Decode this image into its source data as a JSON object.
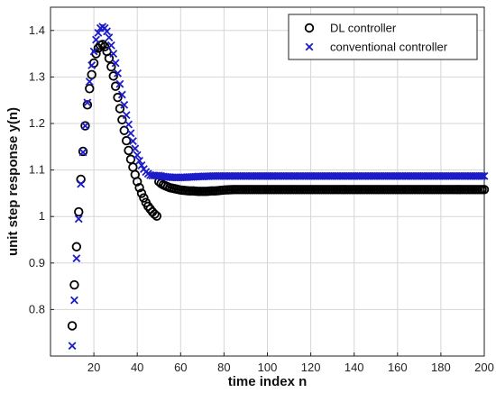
{
  "chart_data": {
    "type": "scatter",
    "xlabel": "time index n",
    "ylabel": "unit step response y(n)",
    "xlim": [
      0,
      200
    ],
    "ylim": [
      0.7,
      1.45
    ],
    "xticks": [
      20,
      40,
      60,
      80,
      100,
      120,
      140,
      160,
      180,
      200
    ],
    "yticks": [
      0.8,
      0.9,
      1,
      1.1,
      1.2,
      1.3,
      1.4
    ],
    "grid": true,
    "legend_position": "top-right",
    "series": [
      {
        "name": "DL controller",
        "marker": "circle",
        "color": "#000000",
        "x": [
          10,
          11,
          12,
          13,
          14,
          15,
          16,
          17,
          18,
          19,
          20,
          21,
          22,
          23,
          24,
          25,
          26,
          27,
          28,
          29,
          30,
          31,
          32,
          33,
          34,
          35,
          36,
          37,
          38,
          39,
          40,
          41,
          42,
          43,
          44,
          45,
          46,
          47,
          48,
          49,
          50,
          51,
          52,
          53,
          54,
          55,
          56,
          57,
          58,
          59,
          60,
          62,
          64,
          66,
          68,
          70,
          72,
          74,
          76,
          78,
          80,
          85,
          90,
          95,
          100,
          110,
          120,
          130,
          140,
          150,
          160,
          170,
          180,
          190,
          200
        ],
        "y": [
          0.765,
          0.853,
          0.935,
          1.01,
          1.08,
          1.14,
          1.195,
          1.24,
          1.275,
          1.305,
          1.33,
          1.35,
          1.362,
          1.368,
          1.37,
          1.365,
          1.355,
          1.34,
          1.322,
          1.302,
          1.28,
          1.256,
          1.232,
          1.208,
          1.185,
          1.163,
          1.142,
          1.123,
          1.106,
          1.09,
          1.075,
          1.062,
          1.05,
          1.04,
          1.03,
          1.022,
          1.016,
          1.01,
          1.005,
          1.001,
          1.075,
          1.071,
          1.068,
          1.066,
          1.064,
          1.062,
          1.061,
          1.06,
          1.059,
          1.058,
          1.057,
          1.056,
          1.055,
          1.055,
          1.054,
          1.054,
          1.054,
          1.055,
          1.055,
          1.056,
          1.057,
          1.058,
          1.058,
          1.058,
          1.058,
          1.058,
          1.058,
          1.058,
          1.058,
          1.058,
          1.058,
          1.058,
          1.058,
          1.058,
          1.058
        ]
      },
      {
        "name": "conventional controller",
        "marker": "x",
        "color": "#1c1cc8",
        "x": [
          10,
          11,
          12,
          13,
          14,
          15,
          16,
          17,
          18,
          19,
          20,
          21,
          22,
          23,
          24,
          25,
          26,
          27,
          28,
          29,
          30,
          31,
          32,
          33,
          34,
          35,
          36,
          37,
          38,
          39,
          40,
          41,
          42,
          43,
          44,
          45,
          46,
          47,
          48,
          49,
          50,
          52,
          54,
          56,
          58,
          60,
          62,
          64,
          66,
          68,
          70,
          75,
          80,
          85,
          90,
          95,
          100,
          110,
          120,
          130,
          140,
          150,
          160,
          170,
          180,
          190,
          200
        ],
        "y": [
          0.722,
          0.82,
          0.91,
          0.995,
          1.07,
          1.138,
          1.195,
          1.245,
          1.29,
          1.325,
          1.355,
          1.38,
          1.395,
          1.405,
          1.408,
          1.405,
          1.398,
          1.385,
          1.368,
          1.35,
          1.33,
          1.308,
          1.285,
          1.262,
          1.24,
          1.218,
          1.198,
          1.179,
          1.162,
          1.146,
          1.132,
          1.12,
          1.11,
          1.102,
          1.096,
          1.092,
          1.089,
          1.088,
          1.088,
          1.088,
          1.088,
          1.086,
          1.085,
          1.084,
          1.084,
          1.084,
          1.084,
          1.085,
          1.085,
          1.086,
          1.086,
          1.087,
          1.087,
          1.087,
          1.087,
          1.087,
          1.087,
          1.087,
          1.087,
          1.087,
          1.087,
          1.087,
          1.087,
          1.087,
          1.087,
          1.087,
          1.087
        ]
      }
    ]
  }
}
